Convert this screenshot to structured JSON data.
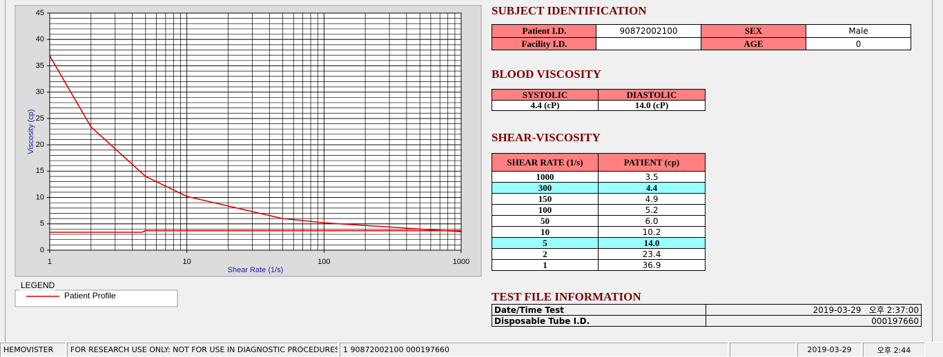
{
  "chart_data": {
    "type": "line",
    "x_label": "Shear Rate (1/s)",
    "y_label": "Viscosity (cp)",
    "log_x": true,
    "grid": true,
    "xlim": [
      1,
      1000
    ],
    "xticks": [
      1,
      10,
      100,
      1000
    ],
    "ylim": [
      0,
      45
    ],
    "yticks": [
      0,
      5,
      10,
      15,
      20,
      25,
      30,
      35,
      40,
      45
    ],
    "legend_title": "LEGEND",
    "series": [
      {
        "name": "Patient Profile",
        "color": "#e00000",
        "x": [
          1,
          2,
          5,
          10,
          50,
          100,
          150,
          300,
          1000
        ],
        "values": [
          36.9,
          23.4,
          14.0,
          10.2,
          6.0,
          5.2,
          4.9,
          4.4,
          3.5
        ]
      },
      {
        "color": "#e00000",
        "x": [
          1,
          4.7,
          5,
          1000
        ],
        "values": [
          3.4,
          3.4,
          3.7,
          3.7
        ]
      }
    ]
  },
  "subject": {
    "title": "SUBJECT IDENTIFICATION",
    "patient_id_label": "Patient I.D.",
    "patient_id": "90872002100",
    "sex_label": "SEX",
    "sex": "Male",
    "facility_id_label": "Facility I.D.",
    "age_label": "AGE",
    "age": "0"
  },
  "blood": {
    "title": "BLOOD VISCOSITY",
    "headers": [
      "SYSTOLIC",
      "DIASTOLIC"
    ],
    "values": [
      "4.4 (cP)",
      "14.0 (cP)"
    ]
  },
  "shear": {
    "title": "SHEAR-VISCOSITY",
    "headers": [
      "SHEAR RATE (1/s)",
      "PATIENT (cp)"
    ],
    "rows": [
      {
        "rate": "1000",
        "value": "3.5"
      },
      {
        "rate": "300",
        "value": "4.4",
        "highlight": true
      },
      {
        "rate": "150",
        "value": "4.9"
      },
      {
        "rate": "100",
        "value": "5.2"
      },
      {
        "rate": "50",
        "value": "6.0"
      },
      {
        "rate": "10",
        "value": "10.2"
      },
      {
        "rate": "5",
        "value": "14.0",
        "highlight": true
      },
      {
        "rate": "2",
        "value": "23.4"
      },
      {
        "rate": "1",
        "value": "36.9"
      }
    ]
  },
  "test_file": {
    "title": "TEST FILE INFORMATION",
    "rows": [
      [
        "Date/Time Test",
        "2019-03-29   오후 2:37:00"
      ],
      [
        "Disposable Tube I.D.",
        "000197660"
      ]
    ]
  },
  "status_bar": [
    "HEMOVISTER",
    "FOR RESEARCH USE ONLY: NOT FOR USE IN DIAGNOSTIC PROCEDURES",
    "1  90872002100  000197660",
    "2019-03-29",
    "오후 2:44"
  ]
}
